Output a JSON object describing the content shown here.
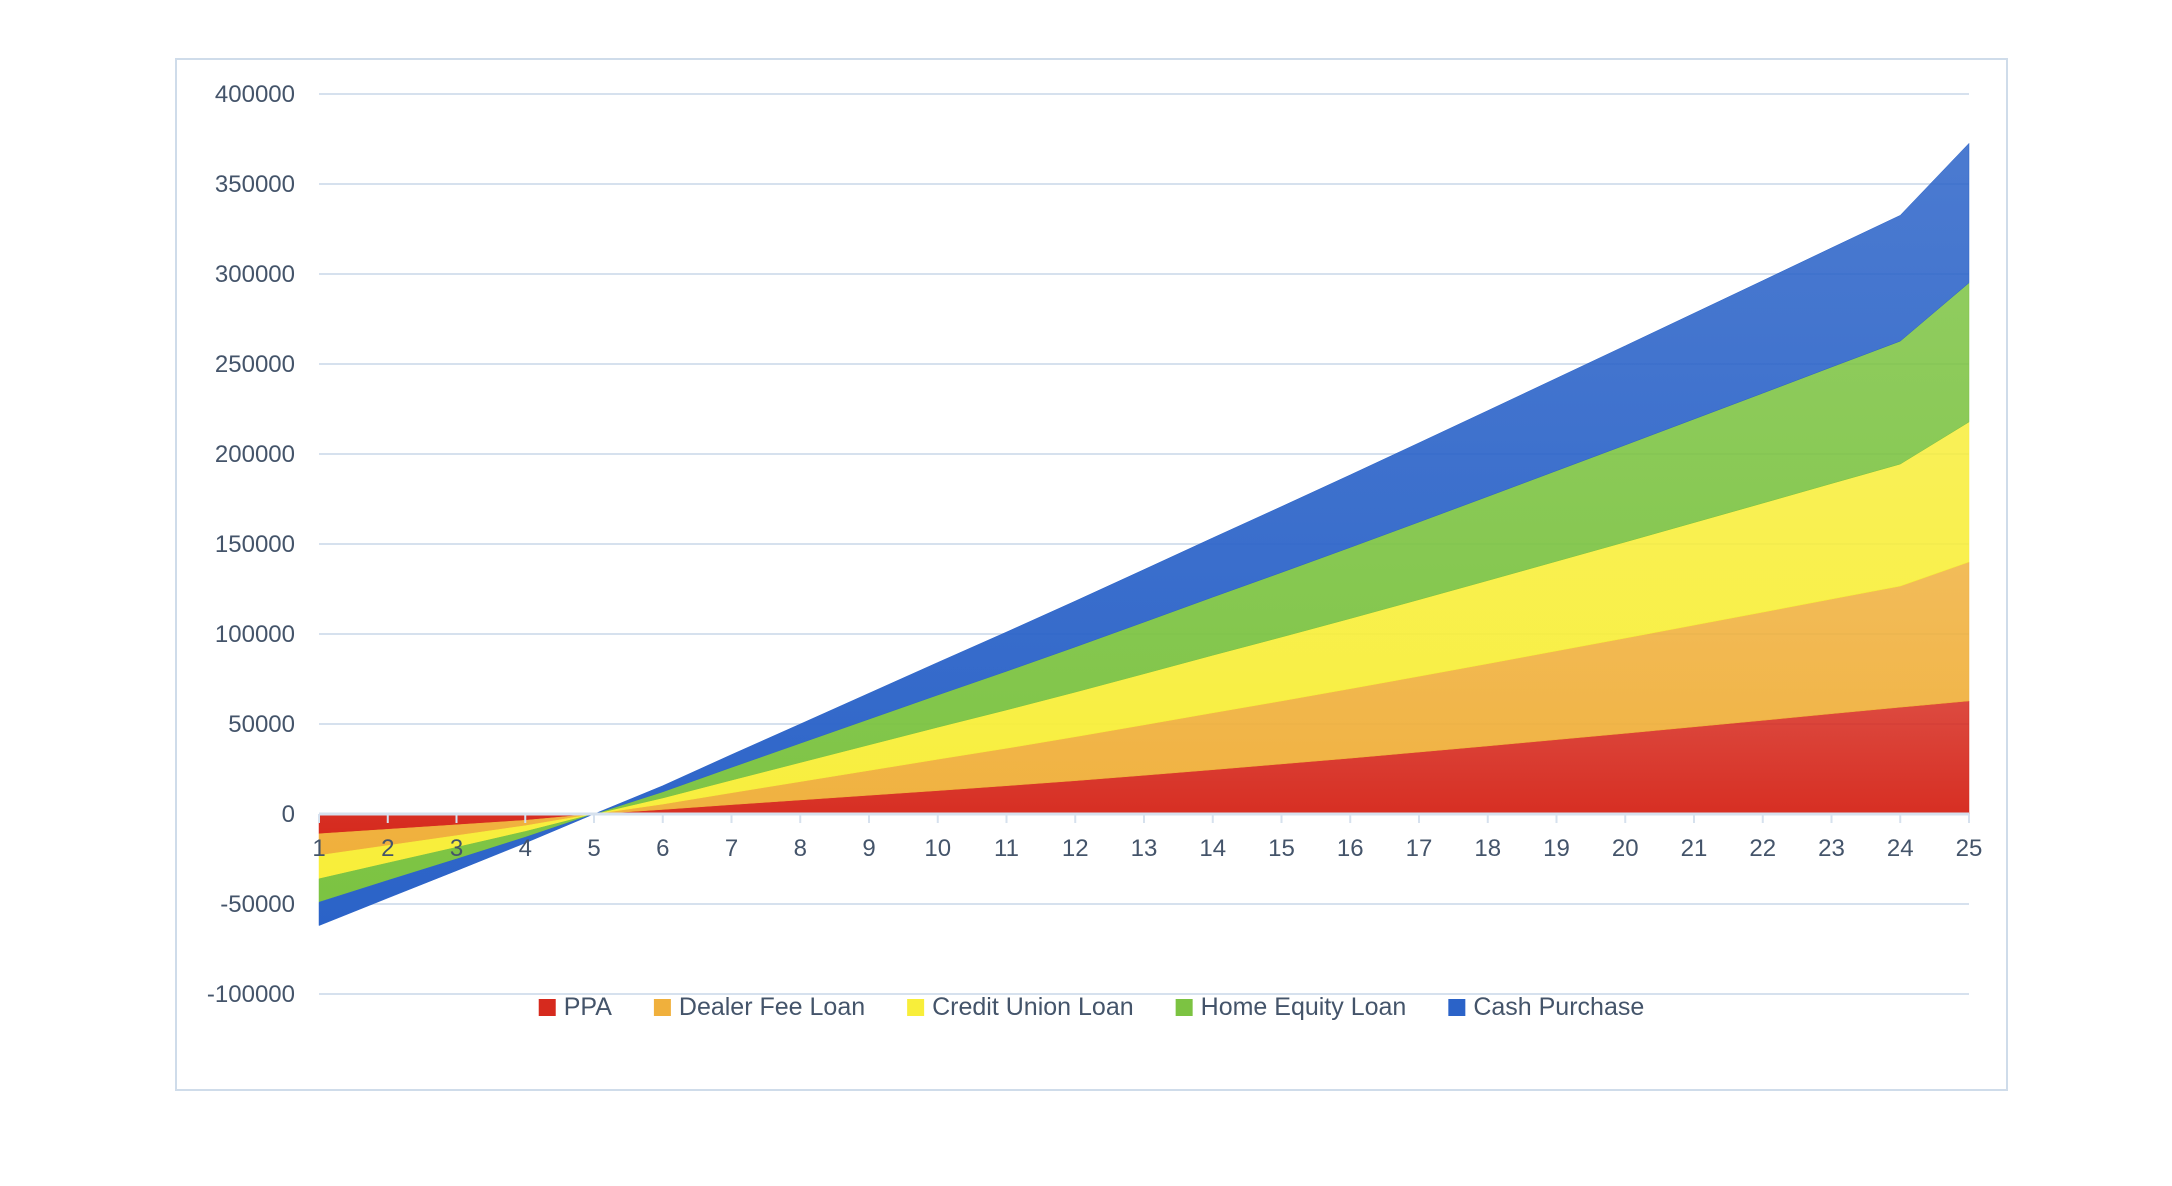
{
  "chart_data": {
    "type": "area",
    "stacked": true,
    "title": "",
    "xlabel": "",
    "ylabel": "",
    "x": [
      1,
      2,
      3,
      4,
      5,
      6,
      7,
      8,
      9,
      10,
      11,
      12,
      13,
      14,
      15,
      16,
      17,
      18,
      19,
      20,
      21,
      22,
      23,
      24,
      25
    ],
    "ylim": [
      -100000,
      400000
    ],
    "yticks": [
      400000,
      350000,
      300000,
      250000,
      200000,
      150000,
      100000,
      50000,
      0,
      -50000,
      -100000
    ],
    "grid": true,
    "legend_position": "bottom",
    "series": [
      {
        "name": "PPA",
        "color": "#d62a1e",
        "values": [
          -11000,
          -8500,
          -6000,
          -3500,
          0,
          2500,
          5200,
          7800,
          10400,
          13000,
          15700,
          18500,
          21500,
          24600,
          27800,
          31000,
          34400,
          37800,
          41300,
          44800,
          48400,
          52000,
          55700,
          59300,
          62800
        ]
      },
      {
        "name": "Dealer Fee Loan",
        "color": "#f0b03c",
        "values": [
          -12000,
          -9000,
          -6000,
          -3000,
          0,
          3000,
          6600,
          10200,
          13800,
          17400,
          20800,
          24400,
          28000,
          31600,
          35000,
          38600,
          42100,
          45700,
          49300,
          52900,
          56500,
          60100,
          63700,
          67300,
          77200
        ]
      },
      {
        "name": "Credit Union Loan",
        "color": "#f8ee3a",
        "values": [
          -13000,
          -9700,
          -6500,
          -3200,
          0,
          3400,
          7000,
          10600,
          14200,
          17800,
          21300,
          24800,
          28400,
          32000,
          35500,
          39000,
          42600,
          46200,
          49800,
          53400,
          57000,
          60600,
          64200,
          67800,
          77800
        ]
      },
      {
        "name": "Home Equity Loan",
        "color": "#7cc342",
        "values": [
          -13000,
          -9700,
          -6500,
          -3200,
          0,
          3400,
          7100,
          10700,
          14300,
          17900,
          21500,
          25100,
          28700,
          32300,
          35900,
          39500,
          43100,
          46700,
          50300,
          53900,
          57500,
          61100,
          64700,
          68300,
          77300
        ]
      },
      {
        "name": "Cash Purchase",
        "color": "#2b63c8",
        "values": [
          -13000,
          -9800,
          -6500,
          -3200,
          0,
          3400,
          7100,
          10700,
          14400,
          18100,
          21800,
          25500,
          29200,
          32900,
          36600,
          40300,
          44000,
          47700,
          51400,
          55100,
          58800,
          62500,
          66200,
          69900,
          77500
        ]
      }
    ]
  }
}
